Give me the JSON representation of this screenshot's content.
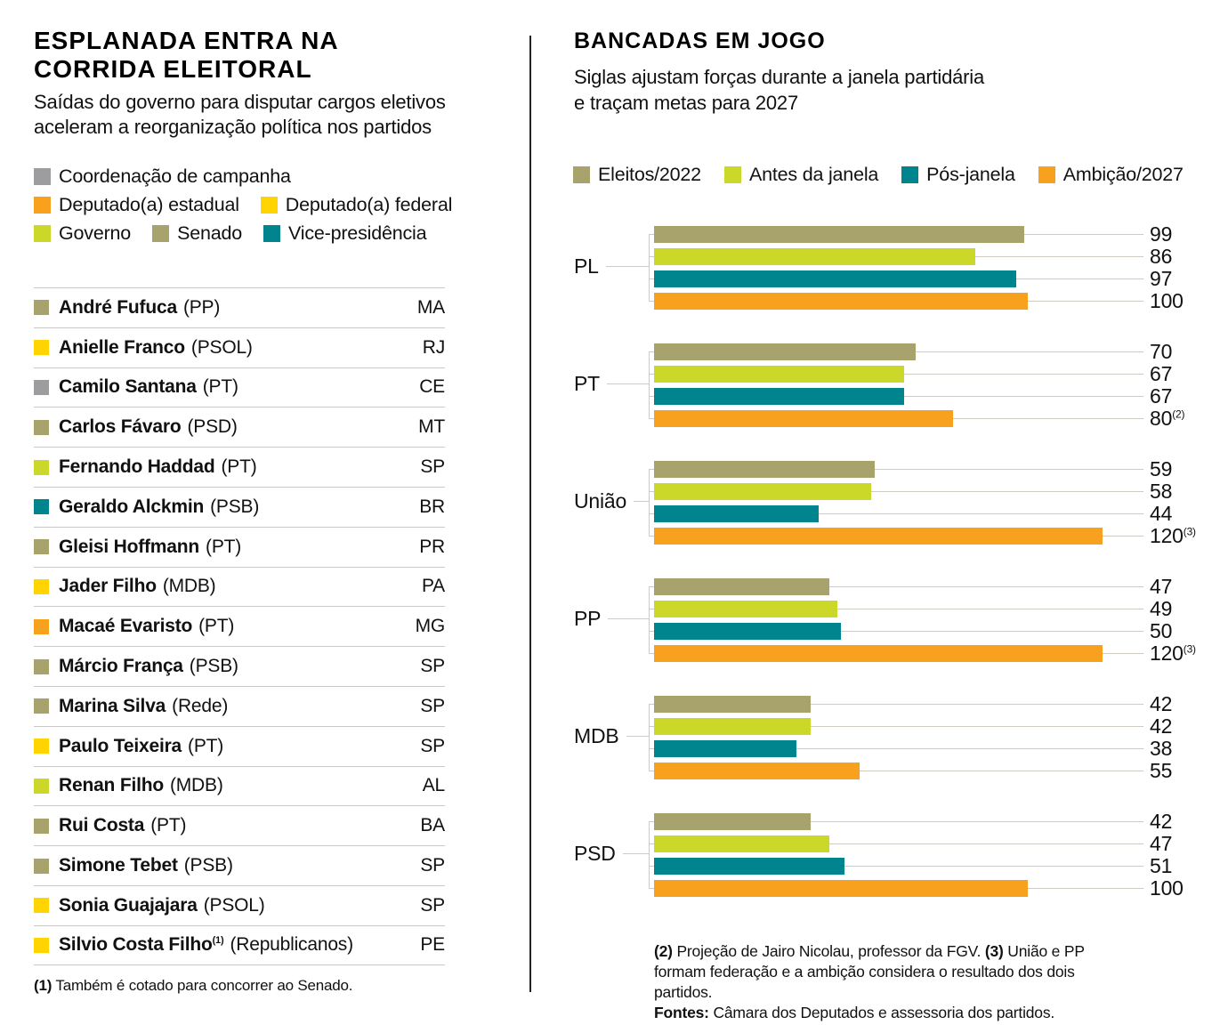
{
  "colors": {
    "olive": "#a8a26c",
    "lime": "#ccd829",
    "teal": "#00848e",
    "orange": "#f7a11f",
    "yellow": "#ffd400",
    "gray": "#9d9d9f",
    "line": "#cfcbc3",
    "divider": "#232323",
    "row_border": "#c9c9c9"
  },
  "left": {
    "title": "ESPLANADA ENTRA NA\nCORRIDA ELEITORAL",
    "subtitle": "Saídas do governo para disputar cargos eletivos\naceleram a reorganização política nos partidos",
    "legend_lines": [
      [
        {
          "label": "Coordenação de campanha",
          "color": "gray"
        }
      ],
      [
        {
          "label": "Deputado(a) estadual",
          "color": "orange"
        },
        {
          "label": "Deputado(a) federal",
          "color": "yellow"
        }
      ],
      [
        {
          "label": "Governo",
          "color": "lime"
        },
        {
          "label": "Senado",
          "color": "olive"
        },
        {
          "label": "Vice-presidência",
          "color": "teal"
        }
      ]
    ],
    "people": [
      {
        "name": "André Fufuca",
        "party": "(PP)",
        "state": "MA",
        "color": "olive"
      },
      {
        "name": "Anielle Franco",
        "party": "(PSOL)",
        "state": "RJ",
        "color": "yellow"
      },
      {
        "name": "Camilo Santana",
        "party": "(PT)",
        "state": "CE",
        "color": "gray"
      },
      {
        "name": "Carlos Fávaro",
        "party": "(PSD)",
        "state": "MT",
        "color": "olive"
      },
      {
        "name": "Fernando Haddad",
        "party": "(PT)",
        "state": "SP",
        "color": "lime"
      },
      {
        "name": "Geraldo Alckmin",
        "party": "(PSB)",
        "state": "BR",
        "color": "teal"
      },
      {
        "name": "Gleisi Hoffmann",
        "party": "(PT)",
        "state": "PR",
        "color": "olive"
      },
      {
        "name": "Jader Filho",
        "party": "(MDB)",
        "state": "PA",
        "color": "yellow"
      },
      {
        "name": "Macaé Evaristo",
        "party": "(PT)",
        "state": "MG",
        "color": "orange"
      },
      {
        "name": "Márcio França",
        "party": "(PSB)",
        "state": "SP",
        "color": "olive"
      },
      {
        "name": "Marina Silva",
        "party": "(Rede)",
        "state": "SP",
        "color": "olive"
      },
      {
        "name": "Paulo Teixeira",
        "party": "(PT)",
        "state": "SP",
        "color": "yellow"
      },
      {
        "name": "Renan Filho",
        "party": "(MDB)",
        "state": "AL",
        "color": "lime"
      },
      {
        "name": "Rui Costa",
        "party": "(PT)",
        "state": "BA",
        "color": "olive"
      },
      {
        "name": "Simone Tebet",
        "party": "(PSB)",
        "state": "SP",
        "color": "olive"
      },
      {
        "name": "Sonia Guajajara",
        "party": "(PSOL)",
        "state": "SP",
        "color": "yellow"
      },
      {
        "name": "Silvio Costa Filho",
        "sup": "(1)",
        "party": "(Republicanos)",
        "state": "PE",
        "color": "yellow"
      }
    ],
    "footnote": [
      {
        "b": "(1)"
      },
      {
        "t": " Também é cotado para concorrer ao Senado."
      }
    ]
  },
  "right": {
    "title": "BANCADAS EM JOGO",
    "subtitle": "Siglas ajustam forças durante a janela partidária\ne traçam metas para 2027",
    "legend": [
      {
        "label": "Eleitos/2022",
        "color": "olive"
      },
      {
        "label": "Antes da janela",
        "color": "lime"
      },
      {
        "label": "Pós-janela",
        "color": "teal"
      },
      {
        "label": "Ambição/2027",
        "color": "orange"
      }
    ],
    "footnote_lines": [
      [
        {
          "b": "(2)"
        },
        {
          "t": " Projeção de Jairo Nicolau, professor da FGV. "
        },
        {
          "b": "(3)"
        },
        {
          "t": " União e PP"
        }
      ],
      [
        {
          "t": "formam federação e a ambição considera o resultado dos dois partidos."
        }
      ],
      [
        {
          "b": "Fontes:"
        },
        {
          "t": " Câmara dos Deputados e assessoria dos partidos."
        }
      ]
    ]
  },
  "chart_data": {
    "type": "bar",
    "orientation": "horizontal",
    "title": "BANCADAS EM JOGO",
    "categories": [
      "PL",
      "PT",
      "União",
      "PP",
      "MDB",
      "PSD"
    ],
    "series": [
      {
        "name": "Eleitos/2022",
        "color": "olive",
        "values": [
          99,
          70,
          59,
          47,
          42,
          42
        ]
      },
      {
        "name": "Antes da janela",
        "color": "lime",
        "values": [
          86,
          67,
          58,
          49,
          42,
          47
        ]
      },
      {
        "name": "Pós-janela",
        "color": "teal",
        "values": [
          97,
          67,
          44,
          50,
          38,
          51
        ]
      },
      {
        "name": "Ambição/2027",
        "color": "orange",
        "values": [
          100,
          80,
          120,
          120,
          55,
          100
        ],
        "sups": [
          "",
          "(2)",
          "(3)",
          "(3)",
          "",
          ""
        ]
      }
    ],
    "xlim": [
      0,
      120
    ],
    "grid": false,
    "legend_position": "top",
    "value_labels": "right"
  }
}
